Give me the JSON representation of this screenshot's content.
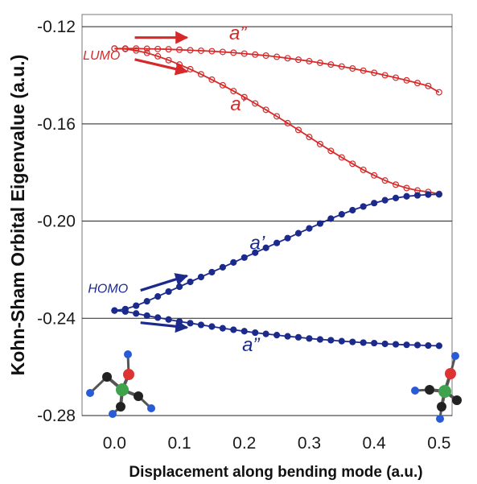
{
  "chart_data": {
    "type": "line",
    "title": "",
    "xlabel": "Displacement along bending mode (a.u.)",
    "ylabel": "Kohn-Sham Orbital Eigenvalue (a.u.)",
    "xlim": [
      -0.05,
      0.52
    ],
    "ylim": [
      -0.28,
      -0.115
    ],
    "xticks": [
      0.0,
      0.1,
      0.2,
      0.3,
      0.4,
      0.5
    ],
    "xtick_labels": [
      "0.0",
      "0.1",
      "0.2",
      "0.3",
      "0.4",
      "0.5"
    ],
    "yticks": [
      -0.12,
      -0.16,
      -0.2,
      -0.24,
      -0.28
    ],
    "ytick_labels": [
      "-0.12",
      "-0.16",
      "-0.20",
      "-0.24",
      "-0.28"
    ],
    "grid": "horizontal",
    "legend": "none",
    "series": [
      {
        "label": "a”",
        "group": "LUMO",
        "color": "#d62a2a",
        "marker": "open-circle",
        "x": [
          0.0,
          0.0167,
          0.0333,
          0.05,
          0.0667,
          0.0833,
          0.1,
          0.1167,
          0.1333,
          0.15,
          0.1667,
          0.1833,
          0.2,
          0.2167,
          0.2333,
          0.25,
          0.2667,
          0.2833,
          0.3,
          0.3167,
          0.3333,
          0.35,
          0.3667,
          0.3833,
          0.4,
          0.4167,
          0.4333,
          0.45,
          0.4667,
          0.4833,
          0.5
        ],
        "y": [
          -0.129,
          -0.129,
          -0.129,
          -0.1291,
          -0.1292,
          -0.1293,
          -0.1295,
          -0.1297,
          -0.1299,
          -0.1301,
          -0.1304,
          -0.1307,
          -0.1311,
          -0.1315,
          -0.1319,
          -0.1324,
          -0.133,
          -0.1336,
          -0.1342,
          -0.1349,
          -0.1356,
          -0.1364,
          -0.1372,
          -0.1381,
          -0.139,
          -0.14,
          -0.141,
          -0.1421,
          -0.1432,
          -0.1444,
          -0.147
        ]
      },
      {
        "label": "a’",
        "group": "LUMO",
        "color": "#d62a2a",
        "marker": "open-circle",
        "x": [
          0.0,
          0.0167,
          0.0333,
          0.05,
          0.0667,
          0.0833,
          0.1,
          0.1167,
          0.1333,
          0.15,
          0.1667,
          0.1833,
          0.2,
          0.2167,
          0.2333,
          0.25,
          0.2667,
          0.2833,
          0.3,
          0.3167,
          0.3333,
          0.35,
          0.3667,
          0.3833,
          0.4,
          0.4167,
          0.4333,
          0.45,
          0.4667,
          0.4833,
          0.5
        ],
        "y": [
          -0.129,
          -0.1292,
          -0.1298,
          -0.1308,
          -0.1322,
          -0.1338,
          -0.1356,
          -0.1375,
          -0.1396,
          -0.1418,
          -0.1441,
          -0.1465,
          -0.149,
          -0.1516,
          -0.1542,
          -0.1569,
          -0.1597,
          -0.1625,
          -0.1654,
          -0.1683,
          -0.1711,
          -0.1738,
          -0.1764,
          -0.1789,
          -0.1812,
          -0.1833,
          -0.185,
          -0.1864,
          -0.1874,
          -0.188,
          -0.1888
        ]
      },
      {
        "label": "a’",
        "group": "HOMO",
        "color": "#1c2a8c",
        "marker": "filled-circle",
        "x": [
          0.0,
          0.0167,
          0.0333,
          0.05,
          0.0667,
          0.0833,
          0.1,
          0.1167,
          0.1333,
          0.15,
          0.1667,
          0.1833,
          0.2,
          0.2167,
          0.2333,
          0.25,
          0.2667,
          0.2833,
          0.3,
          0.3167,
          0.3333,
          0.35,
          0.3667,
          0.3833,
          0.4,
          0.4167,
          0.4333,
          0.45,
          0.4667,
          0.4833,
          0.5
        ],
        "y": [
          -0.2368,
          -0.2362,
          -0.2348,
          -0.233,
          -0.231,
          -0.229,
          -0.227,
          -0.225,
          -0.223,
          -0.221,
          -0.219,
          -0.217,
          -0.215,
          -0.213,
          -0.211,
          -0.209,
          -0.207,
          -0.205,
          -0.203,
          -0.201,
          -0.199,
          -0.1972,
          -0.1955,
          -0.194,
          -0.1926,
          -0.1914,
          -0.1905,
          -0.1898,
          -0.1894,
          -0.1891,
          -0.189
        ]
      },
      {
        "label": "a”",
        "group": "HOMO",
        "color": "#1c2a8c",
        "marker": "filled-circle",
        "x": [
          0.0,
          0.0167,
          0.0333,
          0.05,
          0.0667,
          0.0833,
          0.1,
          0.1167,
          0.1333,
          0.15,
          0.1667,
          0.1833,
          0.2,
          0.2167,
          0.2333,
          0.25,
          0.2667,
          0.2833,
          0.3,
          0.3167,
          0.3333,
          0.35,
          0.3667,
          0.3833,
          0.4,
          0.4167,
          0.4333,
          0.45,
          0.4667,
          0.4833,
          0.5
        ],
        "y": [
          -0.2368,
          -0.2372,
          -0.238,
          -0.2389,
          -0.2397,
          -0.2405,
          -0.2413,
          -0.242,
          -0.2427,
          -0.2434,
          -0.2441,
          -0.2447,
          -0.2453,
          -0.2459,
          -0.2464,
          -0.2469,
          -0.2474,
          -0.2478,
          -0.2483,
          -0.2487,
          -0.249,
          -0.2494,
          -0.2497,
          -0.25,
          -0.2502,
          -0.2505,
          -0.2507,
          -0.2509,
          -0.251,
          -0.2512,
          -0.2513
        ]
      }
    ],
    "annotations": [
      {
        "text": "LUMO",
        "color": "#d62a2a",
        "at": [
          -0.02,
          -0.1335
        ]
      },
      {
        "text": "HOMO",
        "color": "#1c2a8c",
        "at": [
          -0.01,
          -0.2295
        ]
      },
      {
        "text": "a”",
        "color": "#d62a2a",
        "at": [
          0.19,
          -0.1253
        ]
      },
      {
        "text": "a’",
        "color": "#d62a2a",
        "at": [
          0.19,
          -0.1545
        ]
      },
      {
        "text": "a’",
        "color": "#1c2a8c",
        "at": [
          0.22,
          -0.2115
        ]
      },
      {
        "text": "a”",
        "color": "#1c2a8c",
        "at": [
          0.21,
          -0.2535
        ]
      }
    ],
    "arrows": [
      {
        "color": "#d62a2a",
        "from": [
          0.0312,
          -0.1245
        ],
        "to": [
          0.1118,
          -0.1245
        ]
      },
      {
        "color": "#d62a2a",
        "from": [
          0.0312,
          -0.1335
        ],
        "to": [
          0.1118,
          -0.1385
        ]
      },
      {
        "color": "#1c2a8c",
        "from": [
          0.0401,
          -0.2285
        ],
        "to": [
          0.1118,
          -0.2225
        ]
      },
      {
        "color": "#1c2a8c",
        "from": [
          0.0401,
          -0.2418
        ],
        "to": [
          0.1118,
          -0.2438
        ]
      }
    ],
    "molecule_insets": [
      {
        "name": "molecule-left-icon",
        "position": "bottom-left"
      },
      {
        "name": "molecule-right-icon",
        "position": "bottom-right"
      }
    ]
  }
}
